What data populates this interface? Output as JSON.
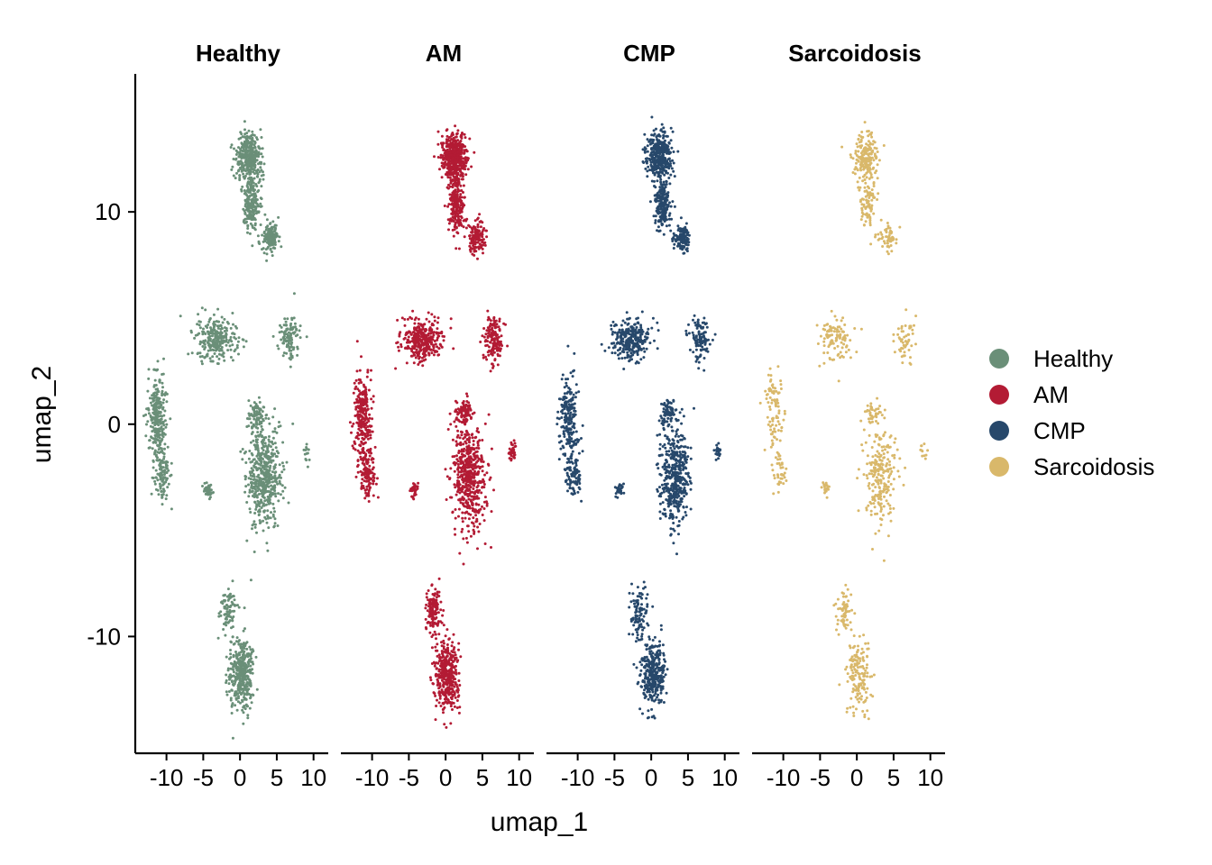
{
  "chart_data": {
    "type": "scatter",
    "xlabel": "umap_1",
    "ylabel": "umap_2",
    "xlim": [
      -14,
      12
    ],
    "ylim": [
      -15.5,
      16.5
    ],
    "x_ticks": [
      -10,
      -5,
      0,
      5,
      10
    ],
    "x_tick_labels": [
      "-10",
      "-5",
      "0",
      "5",
      "10"
    ],
    "y_ticks": [
      -10,
      0,
      10
    ],
    "y_tick_labels": [
      "-10",
      "0",
      "10"
    ],
    "facets": [
      {
        "name": "Healthy",
        "color": "#6A8F78"
      },
      {
        "name": "AM",
        "color": "#B31B34"
      },
      {
        "name": "CMP",
        "color": "#27486B"
      },
      {
        "name": "Sarcoidosis",
        "color": "#D9B86A"
      }
    ],
    "legend": {
      "placement": "right",
      "entries": [
        {
          "label": "Healthy",
          "color": "#6A8F78"
        },
        {
          "label": "AM",
          "color": "#B31B34"
        },
        {
          "label": "CMP",
          "color": "#27486B"
        },
        {
          "label": "Sarcoidosis",
          "color": "#D9B86A"
        }
      ]
    },
    "clusters": [
      {
        "cx": 1.2,
        "cy": 12.6,
        "sx": 1.6,
        "sy": 1.0,
        "w": 20
      },
      {
        "cx": 1.5,
        "cy": 10.4,
        "sx": 1.0,
        "sy": 1.2,
        "w": 10
      },
      {
        "cx": 4.2,
        "cy": 8.8,
        "sx": 1.0,
        "sy": 0.6,
        "w": 6
      },
      {
        "cx": -3.0,
        "cy": 4.0,
        "sx": 2.4,
        "sy": 0.9,
        "w": 14
      },
      {
        "cx": 6.6,
        "cy": 4.0,
        "sx": 1.2,
        "sy": 1.0,
        "w": 6
      },
      {
        "cx": -11.3,
        "cy": 0.4,
        "sx": 1.1,
        "sy": 1.9,
        "w": 12
      },
      {
        "cx": -10.6,
        "cy": -2.3,
        "sx": 1.0,
        "sy": 1.0,
        "w": 5
      },
      {
        "cx": -4.3,
        "cy": -3.1,
        "sx": 0.5,
        "sy": 0.3,
        "w": 2
      },
      {
        "cx": 3.2,
        "cy": -2.5,
        "sx": 2.0,
        "sy": 2.1,
        "w": 24
      },
      {
        "cx": 2.3,
        "cy": 0.5,
        "sx": 1.0,
        "sy": 0.6,
        "w": 4
      },
      {
        "cx": 9.1,
        "cy": -1.3,
        "sx": 0.4,
        "sy": 0.4,
        "w": 1
      },
      {
        "cx": -1.6,
        "cy": -8.8,
        "sx": 1.0,
        "sy": 1.0,
        "w": 5
      },
      {
        "cx": 0.2,
        "cy": -11.8,
        "sx": 1.5,
        "sy": 1.5,
        "w": 18
      }
    ],
    "facet_point_counts": [
      2600,
      2900,
      2300,
      1100
    ],
    "point_radius": 1.5
  },
  "colors": {
    "axis": "#000000",
    "background": "#ffffff"
  }
}
